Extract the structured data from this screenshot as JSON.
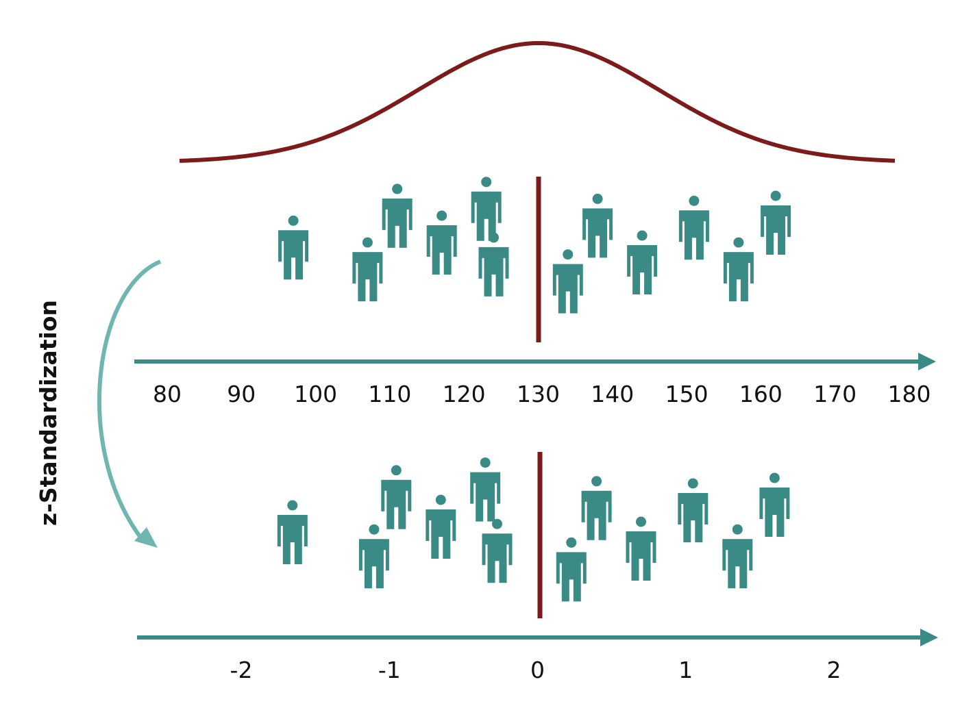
{
  "side_label": "z-Standardization",
  "colors": {
    "person": "#3a8a86",
    "axis": "#3a8a86",
    "curve": "#7d1a1a",
    "center_line": "#7d1a1a",
    "arrow": "#6fb6b1"
  },
  "icons": {
    "person": "person-icon"
  },
  "raw_axis": {
    "ticks": [
      "80",
      "90",
      "100",
      "110",
      "120",
      "130",
      "140",
      "150",
      "160",
      "170",
      "180"
    ],
    "center_value": 130
  },
  "z_axis": {
    "ticks": [
      "-2",
      "-1",
      "0",
      "1",
      "2"
    ],
    "center_value": 0
  },
  "people": [
    {
      "raw_value": 97,
      "z_value": -1.65,
      "level": 0.55
    },
    {
      "raw_value": 107,
      "z_value": -1.1,
      "level": 0.33
    },
    {
      "raw_value": 111,
      "z_value": -0.95,
      "level": 0.87
    },
    {
      "raw_value": 117,
      "z_value": -0.65,
      "level": 0.6
    },
    {
      "raw_value": 123,
      "z_value": -0.35,
      "level": 0.94
    },
    {
      "raw_value": 124,
      "z_value": -0.27,
      "level": 0.38
    },
    {
      "raw_value": 134,
      "z_value": 0.23,
      "level": 0.21
    },
    {
      "raw_value": 138,
      "z_value": 0.4,
      "level": 0.77
    },
    {
      "raw_value": 144,
      "z_value": 0.7,
      "level": 0.4
    },
    {
      "raw_value": 151,
      "z_value": 1.05,
      "level": 0.75
    },
    {
      "raw_value": 157,
      "z_value": 1.35,
      "level": 0.33
    },
    {
      "raw_value": 162,
      "z_value": 1.6,
      "level": 0.8
    }
  ]
}
